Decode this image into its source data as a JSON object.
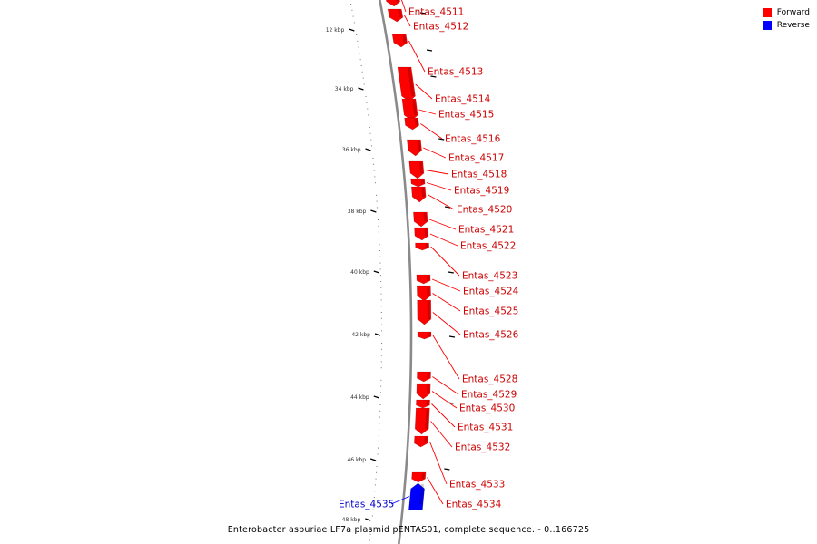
{
  "title": "Enterobacter asburiae LF7a plasmid pENTAS01, complete sequence. - 0..166725",
  "legend": [
    {
      "label": "Forward",
      "color": "#ff0000"
    },
    {
      "label": "Reverse",
      "color": "#0000ff"
    }
  ],
  "scale_labels": [
    "12 kbp",
    "34 kbp",
    "36 kbp",
    "38 kbp",
    "40 kbp",
    "42 kbp",
    "44 kbp",
    "46 kbp",
    "48 kbp"
  ],
  "genes": [
    {
      "name": "Entas_4511",
      "strand": "forward"
    },
    {
      "name": "Entas_4512",
      "strand": "forward"
    },
    {
      "name": "Entas_4513",
      "strand": "forward"
    },
    {
      "name": "Entas_4514",
      "strand": "forward"
    },
    {
      "name": "Entas_4515",
      "strand": "forward"
    },
    {
      "name": "Entas_4516",
      "strand": "forward"
    },
    {
      "name": "Entas_4517",
      "strand": "forward"
    },
    {
      "name": "Entas_4518",
      "strand": "forward"
    },
    {
      "name": "Entas_4519",
      "strand": "forward"
    },
    {
      "name": "Entas_4520",
      "strand": "forward"
    },
    {
      "name": "Entas_4521",
      "strand": "forward"
    },
    {
      "name": "Entas_4522",
      "strand": "forward"
    },
    {
      "name": "Entas_4523",
      "strand": "forward"
    },
    {
      "name": "Entas_4524",
      "strand": "forward"
    },
    {
      "name": "Entas_4525",
      "strand": "forward"
    },
    {
      "name": "Entas_4526",
      "strand": "forward"
    },
    {
      "name": "Entas_4528",
      "strand": "forward"
    },
    {
      "name": "Entas_4529",
      "strand": "forward"
    },
    {
      "name": "Entas_4530",
      "strand": "forward"
    },
    {
      "name": "Entas_4531",
      "strand": "forward"
    },
    {
      "name": "Entas_4532",
      "strand": "forward"
    },
    {
      "name": "Entas_4533",
      "strand": "forward"
    },
    {
      "name": "Entas_4534",
      "strand": "forward"
    },
    {
      "name": "Entas_4535",
      "strand": "reverse"
    }
  ]
}
